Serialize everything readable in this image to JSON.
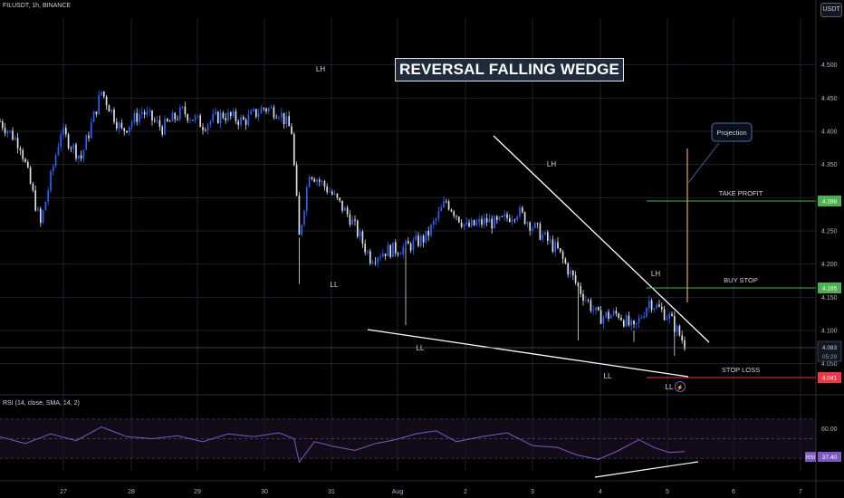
{
  "header": {
    "symbol": "FILUSDT, 1h, BINANCE",
    "currency_button": "USDT"
  },
  "rsi_header": "RSI (14, close, SMA, 14, 2)",
  "colors": {
    "up": "#2962ff",
    "down": "#e0e0e0",
    "grid": "#1e222d",
    "green": "#4caf50",
    "red": "#f23645",
    "wedge": "#ffffff",
    "projection": "#c8a04a",
    "rsi": "#7e57c2",
    "rsi_band": "#1c1426"
  },
  "chart_data": [
    {
      "type": "candlestick",
      "title": "REVERSAL FALLING WEDGE",
      "price_ticks": [
        "4.500",
        "4.450",
        "4.400",
        "4.350",
        "4.300",
        "4.250",
        "4.200",
        "4.150",
        "4.100",
        "4.050"
      ],
      "x_ticks": [
        "27",
        "28",
        "29",
        "30",
        "31",
        "Aug",
        "2",
        "3",
        "4",
        "5",
        "6",
        "7"
      ],
      "ylim": [
        4.02,
        4.56
      ],
      "current_price": {
        "value": "4.083",
        "countdown": "05:29"
      },
      "levels": [
        {
          "name": "TAKE PROFIT",
          "value": 4.288,
          "color": "#4caf50"
        },
        {
          "name": "BUY STOP",
          "value": 4.165,
          "color": "#4caf50"
        },
        {
          "name": "STOP LOSS",
          "value": 4.041,
          "color": "#f23645"
        }
      ],
      "annotations": [
        "LH",
        "LL",
        "LL",
        "LH",
        "LL",
        "LH",
        "LL",
        "Projection"
      ],
      "anchor_points": [
        [
          0,
          4.415
        ],
        [
          8,
          4.38
        ],
        [
          16,
          4.26
        ],
        [
          24,
          4.4
        ],
        [
          32,
          4.36
        ],
        [
          40,
          4.46
        ],
        [
          48,
          4.4
        ],
        [
          56,
          4.43
        ],
        [
          64,
          4.405
        ],
        [
          72,
          4.43
        ],
        [
          80,
          4.41
        ],
        [
          88,
          4.425
        ],
        [
          96,
          4.415
        ],
        [
          104,
          4.435
        ],
        [
          110,
          4.43
        ],
        [
          115,
          4.4
        ],
        [
          118,
          4.24
        ],
        [
          122,
          4.34
        ],
        [
          130,
          4.31
        ],
        [
          138,
          4.27
        ],
        [
          146,
          4.21
        ],
        [
          152,
          4.22
        ],
        [
          160,
          4.225
        ],
        [
          168,
          4.24
        ],
        [
          176,
          4.295
        ],
        [
          184,
          4.255
        ],
        [
          192,
          4.265
        ],
        [
          196,
          4.26
        ],
        [
          204,
          4.28
        ],
        [
          212,
          4.25
        ],
        [
          220,
          4.22
        ],
        [
          228,
          4.165
        ],
        [
          236,
          4.12
        ],
        [
          244,
          4.125
        ],
        [
          250,
          4.1
        ],
        [
          256,
          4.145
        ],
        [
          264,
          4.12
        ],
        [
          270,
          4.08
        ]
      ],
      "rsi": {
        "levels": [
          70,
          50,
          30
        ],
        "ticks": [
          "60.00"
        ],
        "value": "37.40",
        "points": [
          [
            0,
            52
          ],
          [
            10,
            45
          ],
          [
            20,
            55
          ],
          [
            30,
            48
          ],
          [
            40,
            62
          ],
          [
            50,
            52
          ],
          [
            60,
            50
          ],
          [
            70,
            53
          ],
          [
            80,
            47
          ],
          [
            90,
            55
          ],
          [
            100,
            52
          ],
          [
            110,
            56
          ],
          [
            116,
            50
          ],
          [
            118,
            26
          ],
          [
            124,
            47
          ],
          [
            132,
            42
          ],
          [
            140,
            38
          ],
          [
            148,
            45
          ],
          [
            156,
            49
          ],
          [
            164,
            55
          ],
          [
            172,
            58
          ],
          [
            180,
            47
          ],
          [
            190,
            52
          ],
          [
            200,
            56
          ],
          [
            210,
            43
          ],
          [
            220,
            41
          ],
          [
            228,
            33
          ],
          [
            236,
            29
          ],
          [
            244,
            38
          ],
          [
            252,
            49
          ],
          [
            258,
            41
          ],
          [
            264,
            36
          ],
          [
            270,
            37
          ]
        ]
      }
    }
  ]
}
